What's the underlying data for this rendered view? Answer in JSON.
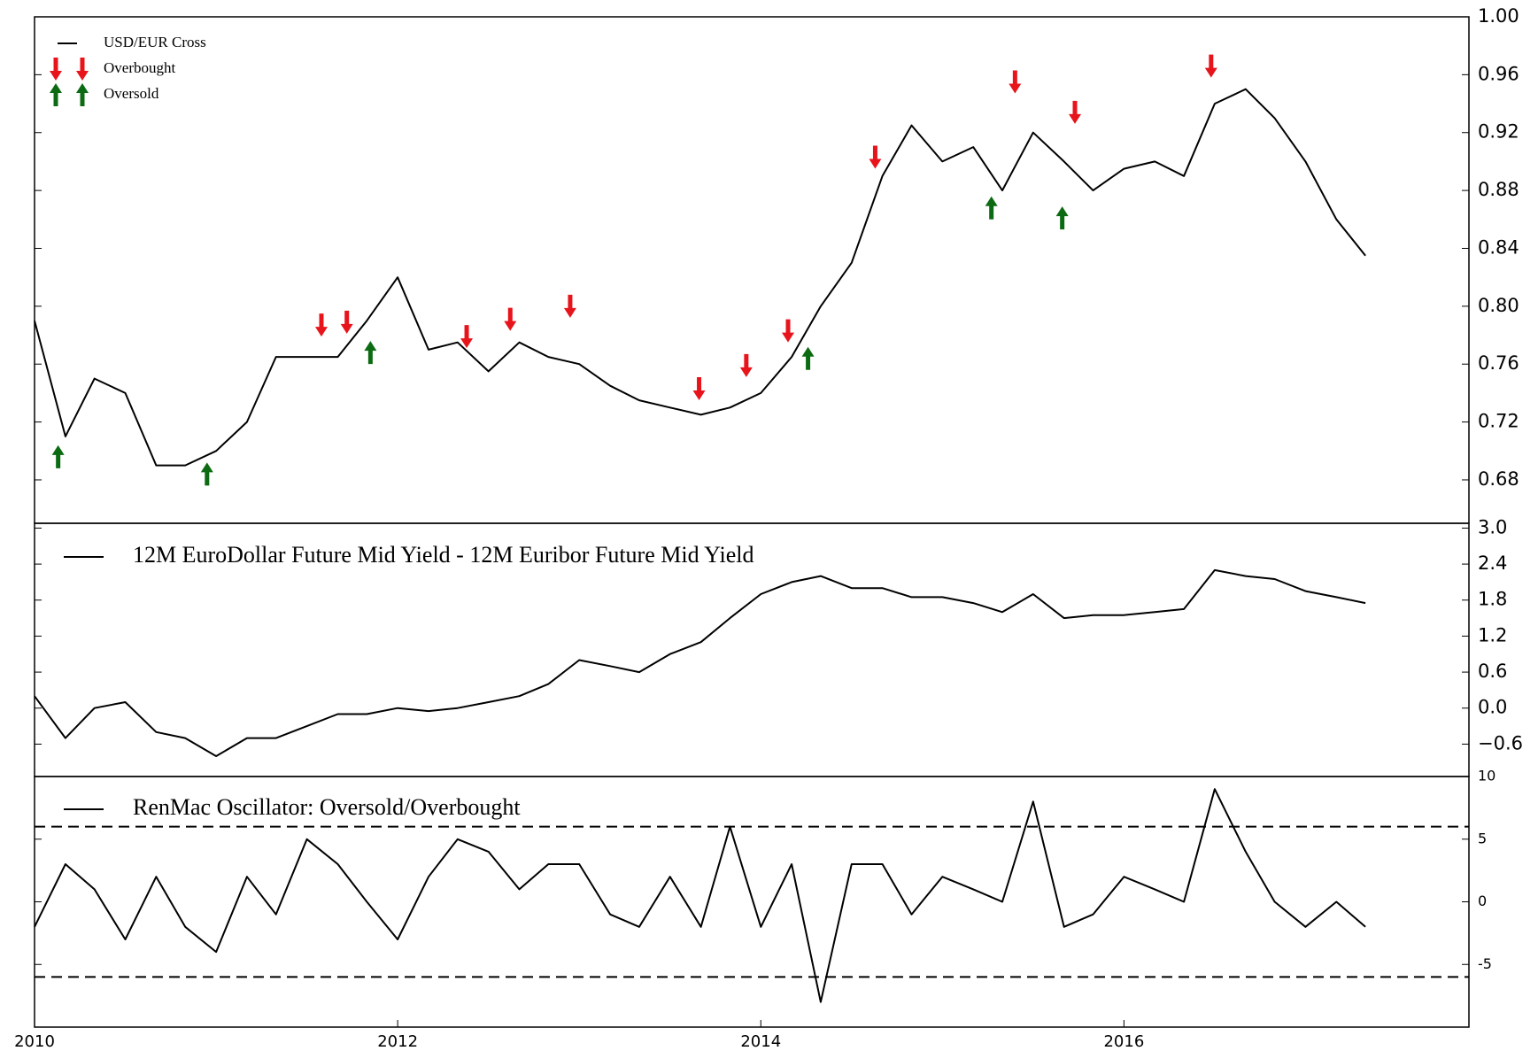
{
  "chart_data": [
    {
      "type": "line",
      "legend": "upper left",
      "x": [
        2010.0,
        2010.17,
        2010.33,
        2010.5,
        2010.67,
        2010.83,
        2011.0,
        2011.17,
        2011.33,
        2011.5,
        2011.67,
        2011.83,
        2012.0,
        2012.17,
        2012.33,
        2012.5,
        2012.67,
        2012.83,
        2013.0,
        2013.17,
        2013.33,
        2013.5,
        2013.67,
        2013.83,
        2014.0,
        2014.17,
        2014.33,
        2014.5,
        2014.67,
        2014.83,
        2015.0,
        2015.17,
        2015.33,
        2015.5,
        2015.67,
        2015.83,
        2016.0,
        2016.17,
        2016.33,
        2016.5,
        2016.67,
        2016.83,
        2017.0,
        2017.17,
        2017.33
      ],
      "xlim": [
        2010,
        2017.9
      ],
      "ylim": [
        0.65,
        1.0
      ],
      "yticks": [
        0.68,
        0.72,
        0.76,
        {
          "value": 0.8,
          "label": "0.80"
        },
        0.84,
        0.88,
        0.92,
        0.96,
        {
          "value": 1.0,
          "label": "1.00"
        }
      ],
      "series": [
        {
          "name": "USD/EUR Cross",
          "color": "#000000",
          "values": [
            0.79,
            0.71,
            0.75,
            0.74,
            0.69,
            0.69,
            0.7,
            0.72,
            0.765,
            0.765,
            0.765,
            0.79,
            0.82,
            0.77,
            0.775,
            0.755,
            0.775,
            0.765,
            0.76,
            0.745,
            0.735,
            0.73,
            0.725,
            0.73,
            0.74,
            0.765,
            0.8,
            0.83,
            0.89,
            0.925,
            0.9,
            0.91,
            0.88,
            0.92,
            0.9,
            0.88,
            0.895,
            0.9,
            0.89,
            0.94,
            0.95,
            0.93,
            0.9,
            0.86,
            0.835
          ]
        },
        {
          "name": "Overbought",
          "color": "#e8141b",
          "marker": "arrow-down",
          "x": [
            2011.58,
            2011.72,
            2012.38,
            2012.62,
            2012.95,
            2013.66,
            2013.92,
            2014.15,
            2014.63,
            2015.4,
            2015.73,
            2016.48
          ],
          "values": [
            0.787,
            0.789,
            0.779,
            0.791,
            0.8,
            0.743,
            0.759,
            0.783,
            0.903,
            0.955,
            0.934,
            0.966
          ]
        },
        {
          "name": "Oversold",
          "color": "#0c6b12",
          "marker": "arrow-up",
          "x": [
            2010.13,
            2010.95,
            2011.85,
            2014.26,
            2015.27,
            2015.66
          ],
          "values": [
            0.696,
            0.684,
            0.768,
            0.764,
            0.868,
            0.861
          ]
        }
      ]
    },
    {
      "type": "line",
      "legend": "upper left",
      "x": [
        2010.0,
        2010.17,
        2010.33,
        2010.5,
        2010.67,
        2010.83,
        2011.0,
        2011.17,
        2011.33,
        2011.5,
        2011.67,
        2011.83,
        2012.0,
        2012.17,
        2012.33,
        2012.5,
        2012.67,
        2012.83,
        2013.0,
        2013.17,
        2013.33,
        2013.5,
        2013.67,
        2013.83,
        2014.0,
        2014.17,
        2014.33,
        2014.5,
        2014.67,
        2014.83,
        2015.0,
        2015.17,
        2015.33,
        2015.5,
        2015.67,
        2015.83,
        2016.0,
        2016.17,
        2016.33,
        2016.5,
        2016.67,
        2016.83,
        2017.0,
        2017.17,
        2017.33
      ],
      "xlim": [
        2010,
        2017.9
      ],
      "ylim": [
        -1.14,
        3.08
      ],
      "yticks": [
        {
          "value": -0.6,
          "label": "−0.6"
        },
        {
          "value": 0,
          "label": "0.0"
        },
        0.6,
        1.2,
        1.8,
        2.4,
        {
          "value": 3,
          "label": "3.0"
        }
      ],
      "series": [
        {
          "name": "12M EuroDollar Future Mid Yield - 12M Euribor Future Mid Yield",
          "color": "#000000",
          "values": [
            0.2,
            -0.5,
            0.0,
            0.1,
            -0.4,
            -0.5,
            -0.8,
            -0.5,
            -0.5,
            -0.3,
            -0.1,
            -0.1,
            0.0,
            -0.05,
            0.0,
            0.1,
            0.2,
            0.4,
            0.8,
            0.7,
            0.6,
            0.9,
            1.1,
            1.5,
            1.9,
            2.1,
            2.2,
            2.0,
            2.0,
            1.85,
            1.85,
            1.75,
            1.6,
            1.9,
            1.5,
            1.55,
            1.55,
            1.6,
            1.65,
            2.3,
            2.2,
            2.15,
            1.95,
            1.85,
            1.75
          ]
        }
      ]
    },
    {
      "type": "line",
      "legend": "upper left",
      "x": [
        2010.0,
        2010.17,
        2010.33,
        2010.5,
        2010.67,
        2010.83,
        2011.0,
        2011.17,
        2011.33,
        2011.5,
        2011.67,
        2011.83,
        2012.0,
        2012.17,
        2012.33,
        2012.5,
        2012.67,
        2012.83,
        2013.0,
        2013.17,
        2013.33,
        2013.5,
        2013.67,
        2013.83,
        2014.0,
        2014.17,
        2014.33,
        2014.5,
        2014.67,
        2014.83,
        2015.0,
        2015.17,
        2015.33,
        2015.5,
        2015.67,
        2015.83,
        2016.0,
        2016.17,
        2016.33,
        2016.5,
        2016.67,
        2016.83,
        2017.0,
        2017.17,
        2017.33
      ],
      "xlim": [
        2010,
        2017.9
      ],
      "xticks": [
        2010,
        2012,
        2014,
        2016
      ],
      "ylim": [
        -10,
        10
      ],
      "yticks": [
        -5,
        0,
        5,
        10
      ],
      "hlines": [
        6,
        -6
      ],
      "hline_style": "dashed",
      "series": [
        {
          "name": "RenMac Oscillator: Oversold/Overbought",
          "color": "#000000",
          "values": [
            -2,
            3,
            1,
            -3,
            2,
            -2,
            -4,
            2,
            -1,
            5,
            3,
            0,
            -3,
            2,
            5,
            4,
            1,
            3,
            3,
            -1,
            -2,
            2,
            -2,
            6,
            -2,
            3,
            -8,
            3,
            3,
            -1,
            2,
            1,
            0,
            8,
            -2,
            -1,
            2,
            1,
            0,
            9,
            4,
            0,
            -2,
            0,
            -2
          ]
        }
      ]
    }
  ]
}
